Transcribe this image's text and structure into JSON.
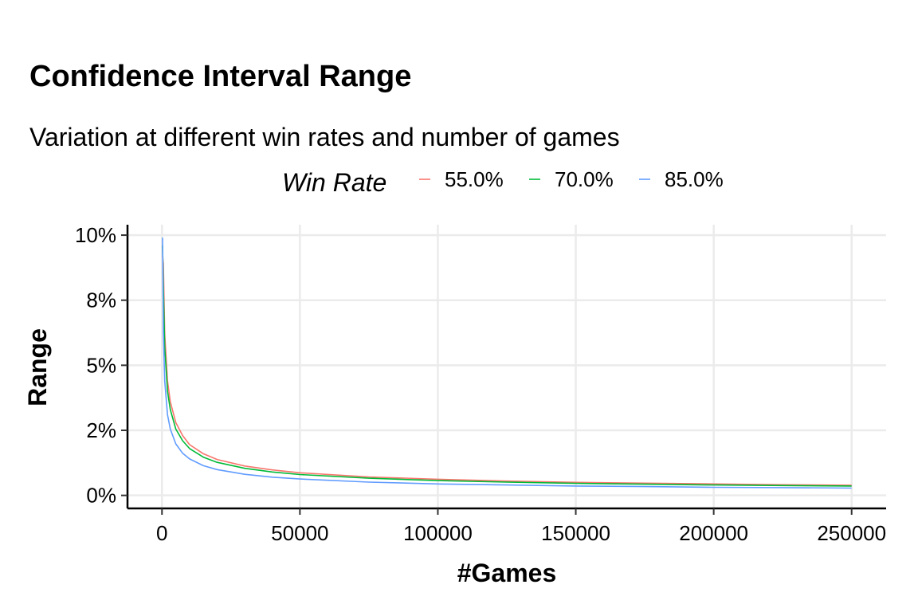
{
  "chart_data": {
    "type": "line",
    "title": "Confidence Interval Range",
    "subtitle": "Variation at different win rates and number of games",
    "xlabel": "#Games",
    "ylabel": "Range",
    "xlim": [
      -12500,
      262500
    ],
    "ylim": [
      -0.5,
      10.4
    ],
    "x_ticks": [
      0,
      50000,
      100000,
      150000,
      200000,
      250000
    ],
    "x_tick_labels": [
      "0",
      "50000",
      "100000",
      "150000",
      "200000",
      "250000"
    ],
    "y_ticks": [
      0,
      2.5,
      5,
      7.5,
      10
    ],
    "y_tick_labels": [
      "0%",
      "2%",
      "5%",
      "8%",
      "10%"
    ],
    "grid": true,
    "legend": {
      "title": "Win Rate",
      "position": "top"
    },
    "series": [
      {
        "name": "55.0%",
        "color": "#F8766D",
        "x": [
          200,
          500,
          1000,
          2000,
          3000,
          5000,
          7500,
          10000,
          15000,
          20000,
          30000,
          40000,
          50000,
          75000,
          100000,
          125000,
          150000,
          175000,
          200000,
          225000,
          250000
        ],
        "y": [
          9.2,
          8.9,
          6.2,
          4.4,
          3.6,
          2.8,
          2.3,
          1.95,
          1.6,
          1.38,
          1.13,
          0.98,
          0.87,
          0.71,
          0.62,
          0.55,
          0.5,
          0.47,
          0.44,
          0.41,
          0.39
        ]
      },
      {
        "name": "70.0%",
        "color": "#00BA38",
        "x": [
          200,
          500,
          1000,
          2000,
          3000,
          5000,
          7500,
          10000,
          15000,
          20000,
          30000,
          40000,
          50000,
          75000,
          100000,
          125000,
          150000,
          175000,
          200000,
          225000,
          250000
        ],
        "y": [
          9.6,
          8.0,
          5.7,
          4.0,
          3.3,
          2.55,
          2.1,
          1.8,
          1.47,
          1.27,
          1.04,
          0.9,
          0.8,
          0.66,
          0.57,
          0.51,
          0.46,
          0.43,
          0.4,
          0.38,
          0.36
        ]
      },
      {
        "name": "85.0%",
        "color": "#619CFF",
        "x": [
          200,
          500,
          1000,
          2000,
          3000,
          5000,
          7500,
          10000,
          15000,
          20000,
          30000,
          40000,
          50000,
          75000,
          100000,
          125000,
          150000,
          175000,
          200000,
          225000,
          250000
        ],
        "y": [
          9.9,
          6.3,
          4.4,
          3.1,
          2.55,
          1.98,
          1.62,
          1.4,
          1.14,
          0.99,
          0.81,
          0.7,
          0.63,
          0.51,
          0.44,
          0.4,
          0.36,
          0.34,
          0.31,
          0.3,
          0.28
        ]
      }
    ]
  }
}
